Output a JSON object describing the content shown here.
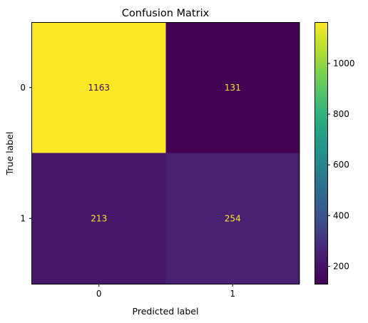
{
  "chart_data": {
    "type": "heatmap",
    "title": "Confusion Matrix",
    "xlabel": "Predicted label",
    "ylabel": "True label",
    "x_categories": [
      "0",
      "1"
    ],
    "y_categories": [
      "0",
      "1"
    ],
    "values": [
      [
        1163,
        131
      ],
      [
        213,
        254
      ]
    ],
    "colormap": "viridis",
    "colorbar": {
      "range": [
        131,
        1163
      ],
      "ticks": [
        200,
        400,
        600,
        800,
        1000
      ]
    },
    "text_colors": {
      "on_dark": "#fde725",
      "on_light": "#440154"
    }
  }
}
